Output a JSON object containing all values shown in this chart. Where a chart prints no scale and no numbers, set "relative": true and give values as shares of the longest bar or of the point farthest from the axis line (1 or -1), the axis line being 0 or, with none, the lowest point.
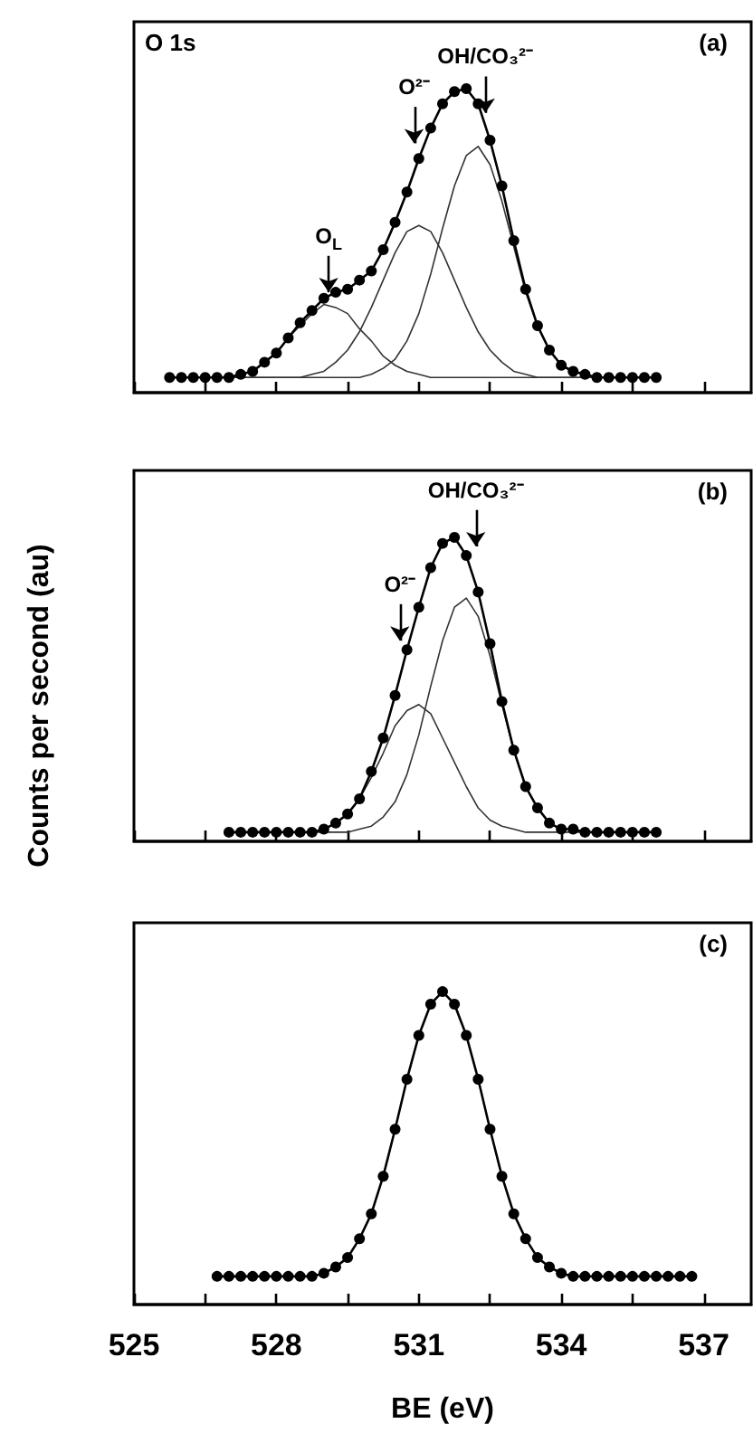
{
  "chart_data": [
    {
      "type": "line",
      "relative": true,
      "xlim": [
        525,
        538
      ],
      "xticks": [
        525,
        {
          "value": 526.5,
          "label": null
        },
        528,
        {
          "value": 529.5,
          "label": null
        },
        531,
        {
          "value": 532.5,
          "label": null
        },
        534,
        {
          "value": 535.5,
          "label": null
        },
        537
      ],
      "tick_labels": false,
      "grid": false,
      "x": [
        525.75,
        526,
        526.25,
        526.5,
        526.75,
        527,
        527.25,
        527.5,
        527.75,
        528,
        528.25,
        528.5,
        528.75,
        529,
        529.25,
        529.5,
        529.75,
        530,
        530.25,
        530.5,
        530.75,
        531,
        531.25,
        531.5,
        531.75,
        532,
        532.25,
        532.5,
        532.75,
        533,
        533.25,
        533.5,
        533.75,
        534,
        534.25,
        534.5,
        534.75,
        535,
        535.25,
        535.5,
        535.75,
        536
      ],
      "annotations": [
        "O 1s",
        "(a)",
        {
          "text": "O$_{L}$",
          "x": 529.1,
          "y": 0.33
        },
        {
          "text": "O²⁻",
          "x": 530.9,
          "y": 0.82
        },
        {
          "text": "OH/CO₃²⁻",
          "x": 532.4,
          "y": 0.92
        }
      ],
      "series": [
        {
          "color": "#333333",
          "marker": "none",
          "values": [
            0.05,
            0.05,
            0.05,
            0.05,
            0.05,
            0.05,
            0.06,
            0.07,
            0.1,
            0.13,
            0.18,
            0.22,
            0.26,
            0.29,
            0.28,
            0.26,
            0.21,
            0.17,
            0.12,
            0.09,
            0.07,
            0.06,
            0.05,
            0.05,
            0.05,
            0.05,
            0.05,
            0.05,
            0.05,
            0.05,
            0.05,
            0.05,
            0.05,
            0.05,
            0.05,
            0.05,
            0.05,
            0.05,
            0.05,
            0.05,
            0.05,
            0.05
          ]
        },
        {
          "color": "#333333",
          "marker": "none",
          "values": [
            0.05,
            0.05,
            0.05,
            0.05,
            0.05,
            0.05,
            0.05,
            0.05,
            0.05,
            0.05,
            0.05,
            0.05,
            0.06,
            0.07,
            0.1,
            0.14,
            0.2,
            0.28,
            0.37,
            0.46,
            0.53,
            0.55,
            0.53,
            0.46,
            0.37,
            0.28,
            0.2,
            0.14,
            0.1,
            0.07,
            0.06,
            0.05,
            0.05,
            0.05,
            0.05,
            0.05,
            0.05,
            0.05,
            0.05,
            0.05,
            0.05,
            0.05
          ]
        },
        {
          "color": "#333333",
          "marker": "none",
          "values": [
            0.05,
            0.05,
            0.05,
            0.05,
            0.05,
            0.05,
            0.05,
            0.05,
            0.05,
            0.05,
            0.05,
            0.05,
            0.05,
            0.05,
            0.05,
            0.05,
            0.05,
            0.06,
            0.08,
            0.11,
            0.17,
            0.26,
            0.39,
            0.54,
            0.68,
            0.78,
            0.81,
            0.75,
            0.63,
            0.48,
            0.33,
            0.22,
            0.14,
            0.09,
            0.07,
            0.06,
            0.05,
            0.05,
            0.05,
            0.05,
            0.05,
            0.05
          ]
        },
        {
          "color": "#000000",
          "marker": "circle",
          "values": [
            0.05,
            0.05,
            0.05,
            0.05,
            0.05,
            0.05,
            0.06,
            0.07,
            0.1,
            0.13,
            0.18,
            0.23,
            0.27,
            0.31,
            0.33,
            0.34,
            0.37,
            0.4,
            0.47,
            0.56,
            0.66,
            0.77,
            0.87,
            0.95,
            0.99,
            1.0,
            0.95,
            0.83,
            0.68,
            0.5,
            0.34,
            0.22,
            0.14,
            0.09,
            0.07,
            0.06,
            0.05,
            0.05,
            0.05,
            0.05,
            0.05,
            0.05
          ]
        }
      ]
    },
    {
      "type": "line",
      "relative": true,
      "xlim": [
        525,
        538
      ],
      "xticks": [
        525,
        {
          "value": 526.5,
          "label": null
        },
        528,
        {
          "value": 529.5,
          "label": null
        },
        531,
        {
          "value": 532.5,
          "label": null
        },
        534,
        {
          "value": 535.5,
          "label": null
        },
        537
      ],
      "tick_labels": false,
      "grid": false,
      "ylabel": "Counts per second (au)",
      "x": [
        527,
        527.25,
        527.5,
        527.75,
        528,
        528.25,
        528.5,
        528.75,
        529,
        529.25,
        529.5,
        529.75,
        530,
        530.25,
        530.5,
        530.75,
        531,
        531.25,
        531.5,
        531.75,
        532,
        532.25,
        532.5,
        532.75,
        533,
        533.25,
        533.5,
        533.75,
        534,
        534.25,
        534.5,
        534.75,
        535,
        535.25,
        535.5,
        535.75,
        536
      ],
      "annotations": [
        "(b)",
        {
          "text": "O²⁻",
          "x": 530.6,
          "y": 0.66
        },
        {
          "text": "OH/CO₃²⁻",
          "x": 532.2,
          "y": 0.97
        }
      ],
      "series": [
        {
          "color": "#333333",
          "marker": "none",
          "values": [
            0.03,
            0.03,
            0.03,
            0.03,
            0.03,
            0.03,
            0.03,
            0.03,
            0.04,
            0.06,
            0.09,
            0.14,
            0.21,
            0.29,
            0.38,
            0.43,
            0.45,
            0.42,
            0.34,
            0.26,
            0.18,
            0.11,
            0.07,
            0.05,
            0.04,
            0.03,
            0.03,
            0.03,
            0.03,
            0.03,
            0.03,
            0.03,
            0.03,
            0.03,
            0.03,
            0.03,
            0.03
          ]
        },
        {
          "color": "#333333",
          "marker": "none",
          "values": [
            0.03,
            0.03,
            0.03,
            0.03,
            0.03,
            0.03,
            0.03,
            0.03,
            0.03,
            0.03,
            0.03,
            0.04,
            0.05,
            0.08,
            0.13,
            0.22,
            0.35,
            0.51,
            0.66,
            0.77,
            0.8,
            0.74,
            0.61,
            0.45,
            0.3,
            0.18,
            0.11,
            0.06,
            0.04,
            0.04,
            0.03,
            0.03,
            0.03,
            0.03,
            0.03,
            0.03,
            0.03
          ]
        },
        {
          "color": "#000000",
          "marker": "circle",
          "values": [
            0.03,
            0.03,
            0.03,
            0.03,
            0.03,
            0.03,
            0.03,
            0.03,
            0.04,
            0.06,
            0.09,
            0.14,
            0.23,
            0.34,
            0.48,
            0.63,
            0.77,
            0.9,
            0.98,
            1.0,
            0.94,
            0.82,
            0.65,
            0.46,
            0.3,
            0.18,
            0.11,
            0.06,
            0.04,
            0.04,
            0.03,
            0.03,
            0.03,
            0.03,
            0.03,
            0.03,
            0.03
          ]
        }
      ]
    },
    {
      "type": "line",
      "relative": true,
      "xlim": [
        525,
        538
      ],
      "xticks": [
        525,
        {
          "value": 526.5,
          "label": null
        },
        528,
        {
          "value": 529.5,
          "label": null
        },
        531,
        {
          "value": 532.5,
          "label": null
        },
        534,
        {
          "value": 535.5,
          "label": null
        },
        537
      ],
      "tick_labels": "x",
      "grid": false,
      "xlabel": "BE (eV)",
      "x": [
        526.75,
        527,
        527.25,
        527.5,
        527.75,
        528,
        528.25,
        528.5,
        528.75,
        529,
        529.25,
        529.5,
        529.75,
        530,
        530.25,
        530.5,
        530.75,
        531,
        531.25,
        531.5,
        531.75,
        532,
        532.25,
        532.5,
        532.75,
        533,
        533.25,
        533.5,
        533.75,
        534,
        534.25,
        534.5,
        534.75,
        535,
        535.25,
        535.5,
        535.75,
        536,
        536.25,
        536.5,
        536.75
      ],
      "annotations": [
        "(c)"
      ],
      "series": [
        {
          "color": "#000000",
          "marker": "circle",
          "values": [
            0.09,
            0.09,
            0.09,
            0.09,
            0.09,
            0.09,
            0.09,
            0.09,
            0.09,
            0.1,
            0.12,
            0.15,
            0.21,
            0.29,
            0.41,
            0.56,
            0.72,
            0.86,
            0.96,
            1.0,
            0.96,
            0.86,
            0.72,
            0.56,
            0.41,
            0.29,
            0.21,
            0.15,
            0.12,
            0.1,
            0.09,
            0.09,
            0.09,
            0.09,
            0.09,
            0.09,
            0.09,
            0.09,
            0.09,
            0.09,
            0.09
          ]
        }
      ]
    }
  ]
}
